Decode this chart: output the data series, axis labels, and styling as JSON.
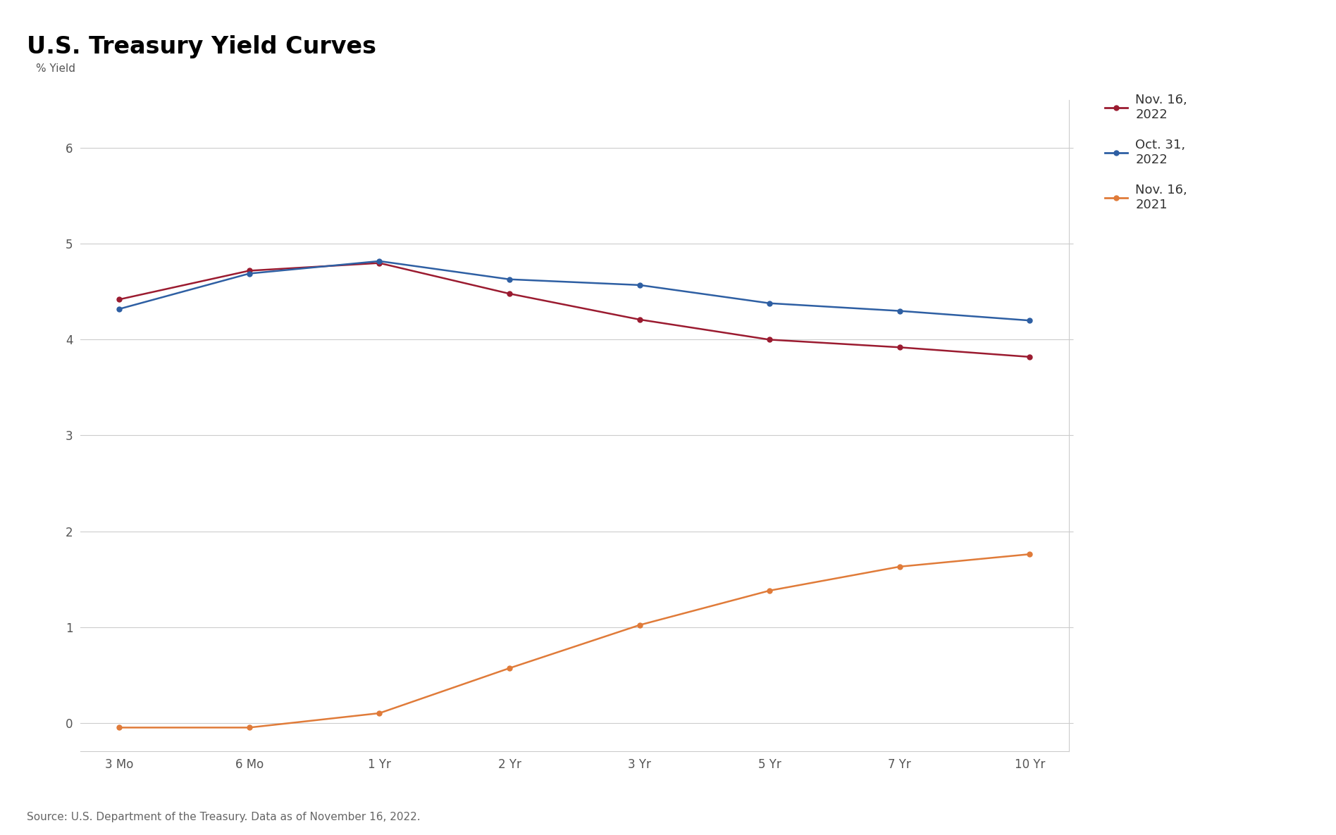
{
  "title": "U.S. Treasury Yield Curves",
  "ylabel": "% Yield",
  "source": "Source: U.S. Department of the Treasury. Data as of November 16, 2022.",
  "x_labels": [
    "3 Mo",
    "6 Mo",
    "1 Yr",
    "2 Yr",
    "3 Yr",
    "5 Yr",
    "7 Yr",
    "10 Yr"
  ],
  "x_positions": [
    0,
    1,
    2,
    3,
    4,
    5,
    6,
    7
  ],
  "series": [
    {
      "label": "Nov. 16,\n2022",
      "color": "#9B1B30",
      "values": [
        4.42,
        4.72,
        4.8,
        4.48,
        4.21,
        4.0,
        3.92,
        3.82
      ],
      "marker": "o"
    },
    {
      "label": "Oct. 31,\n2022",
      "color": "#2E5FA3",
      "values": [
        4.32,
        4.69,
        4.82,
        4.63,
        4.57,
        4.38,
        4.3,
        4.2
      ],
      "marker": "o"
    },
    {
      "label": "Nov. 16,\n2021",
      "color": "#E07B39",
      "values": [
        -0.05,
        -0.05,
        0.1,
        0.57,
        1.02,
        1.38,
        1.63,
        1.76
      ],
      "marker": "o"
    }
  ],
  "ylim": [
    -0.3,
    6.5
  ],
  "yticks": [
    0,
    1,
    2,
    3,
    4,
    5,
    6
  ],
  "background_color": "#FFFFFF",
  "grid_color": "#CCCCCC",
  "title_fontsize": 24,
  "label_fontsize": 11,
  "tick_fontsize": 12,
  "legend_fontsize": 13,
  "source_fontsize": 11,
  "line_width": 1.8,
  "marker_size": 5
}
